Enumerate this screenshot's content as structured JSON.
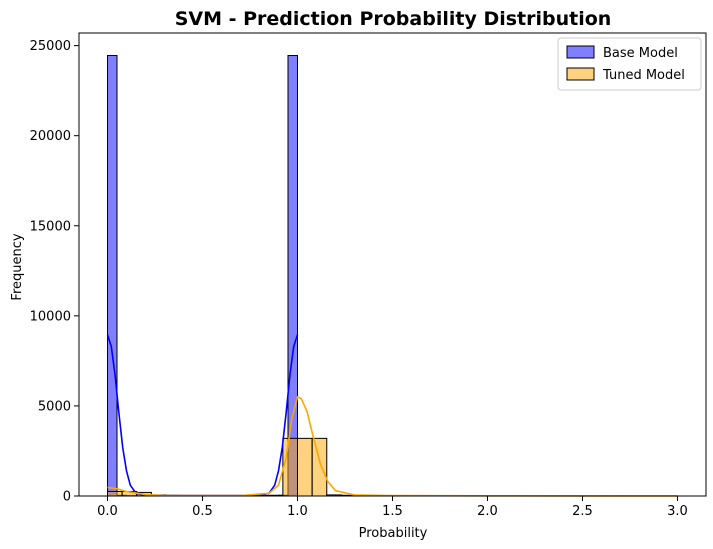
{
  "chart_data": {
    "type": "bar",
    "title": "SVM - Prediction Probability Distribution",
    "xlabel": "Probability",
    "ylabel": "Frequency",
    "xlim": [
      -0.15,
      3.15
    ],
    "ylim": [
      0,
      25700
    ],
    "xticks": [
      0.0,
      0.5,
      1.0,
      1.5,
      2.0,
      2.5,
      3.0
    ],
    "xtick_labels": [
      "0.0",
      "0.5",
      "1.0",
      "1.5",
      "2.0",
      "2.5",
      "3.0"
    ],
    "yticks": [
      0,
      5000,
      10000,
      15000,
      20000,
      25000
    ],
    "ytick_labels": [
      "0",
      "5000",
      "10000",
      "15000",
      "20000",
      "25000"
    ],
    "grid": false,
    "legend_position": "top-right",
    "series": [
      {
        "name": "Base Model",
        "color": "#0000ff",
        "bin_edges": [
          0.0,
          0.05,
          0.1,
          0.15,
          0.2,
          0.25,
          0.3,
          0.35,
          0.4,
          0.45,
          0.5,
          0.55,
          0.6,
          0.65,
          0.7,
          0.75,
          0.8,
          0.85,
          0.9,
          0.95,
          1.0
        ],
        "counts": [
          24450,
          40,
          20,
          15,
          10,
          10,
          8,
          8,
          6,
          6,
          6,
          6,
          6,
          8,
          8,
          10,
          15,
          20,
          40,
          24450
        ],
        "kde": {
          "x": [
            0.0,
            0.02,
            0.04,
            0.06,
            0.08,
            0.1,
            0.12,
            0.15,
            0.2,
            0.3,
            0.4,
            0.5,
            0.6,
            0.7,
            0.8,
            0.85,
            0.88,
            0.9,
            0.92,
            0.94,
            0.96,
            0.98,
            1.0
          ],
          "y": [
            8950,
            8300,
            6700,
            4600,
            2700,
            1400,
            600,
            150,
            30,
            20,
            20,
            20,
            20,
            20,
            30,
            150,
            600,
            1400,
            2700,
            4600,
            6700,
            8300,
            8950
          ]
        }
      },
      {
        "name": "Tuned Model",
        "color": "#ffa500",
        "bin_edges": [
          0.0,
          0.077,
          0.154,
          0.231,
          0.308,
          0.385,
          0.462,
          0.538,
          0.615,
          0.692,
          0.769,
          0.846,
          0.923,
          1.0,
          1.077,
          1.154,
          1.231,
          1.308,
          1.385,
          1.462,
          1.538,
          1.615,
          1.692,
          1.769,
          1.846,
          1.923,
          2.0,
          2.077,
          2.154,
          2.231,
          2.308,
          2.385,
          2.462,
          2.538,
          2.615,
          2.692,
          2.769,
          2.846,
          2.923,
          3.0
        ],
        "counts": [
          250,
          250,
          200,
          60,
          40,
          30,
          25,
          20,
          20,
          20,
          25,
          40,
          3200,
          3200,
          3200,
          60,
          40,
          30,
          25,
          20,
          15,
          15,
          10,
          10,
          10,
          8,
          8,
          6,
          6,
          6,
          5,
          5,
          5,
          4,
          4,
          4,
          3,
          3,
          3
        ],
        "kde": {
          "x": [
            0.0,
            0.05,
            0.1,
            0.2,
            0.3,
            0.5,
            0.7,
            0.85,
            0.9,
            0.94,
            0.97,
            1.0,
            1.02,
            1.05,
            1.08,
            1.12,
            1.16,
            1.2,
            1.3,
            1.5,
            2.0,
            2.5,
            3.0
          ],
          "y": [
            480,
            400,
            250,
            80,
            30,
            20,
            25,
            150,
            600,
            2100,
            4300,
            5500,
            5400,
            4700,
            3400,
            1800,
            800,
            300,
            60,
            20,
            10,
            5,
            5
          ]
        }
      }
    ]
  }
}
